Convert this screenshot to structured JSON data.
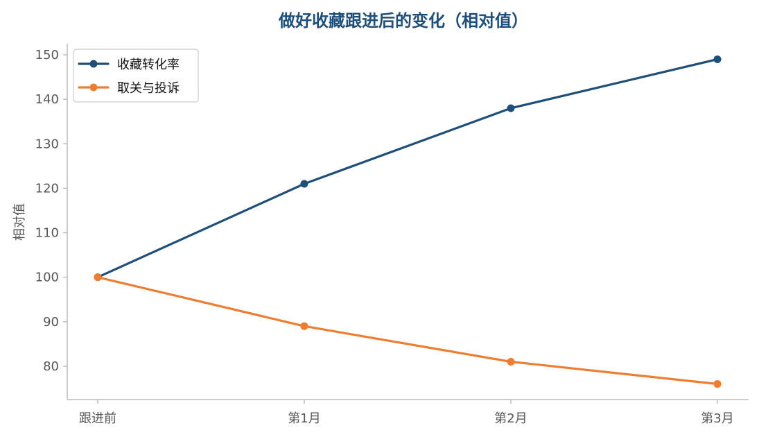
{
  "chart_data": {
    "type": "line",
    "title": "做好收藏跟进后的变化（相对值）",
    "xlabel": "",
    "ylabel": "相对值",
    "categories": [
      "跟进前",
      "第1月",
      "第2月",
      "第3月"
    ],
    "series": [
      {
        "name": "收藏转化率",
        "values": [
          100,
          121,
          138,
          149
        ],
        "color": "#1f4e79"
      },
      {
        "name": "取关与投诉",
        "values": [
          100,
          89,
          81,
          76
        ],
        "color": "#ed7d31"
      }
    ],
    "ylim": [
      72.5,
      152.5
    ],
    "yticks": [
      80,
      90,
      100,
      110,
      120,
      130,
      140,
      150
    ],
    "grid": false,
    "legend_position": "top-left",
    "title_color": "#1f4e79",
    "axis_color": "#bbbbbb"
  }
}
